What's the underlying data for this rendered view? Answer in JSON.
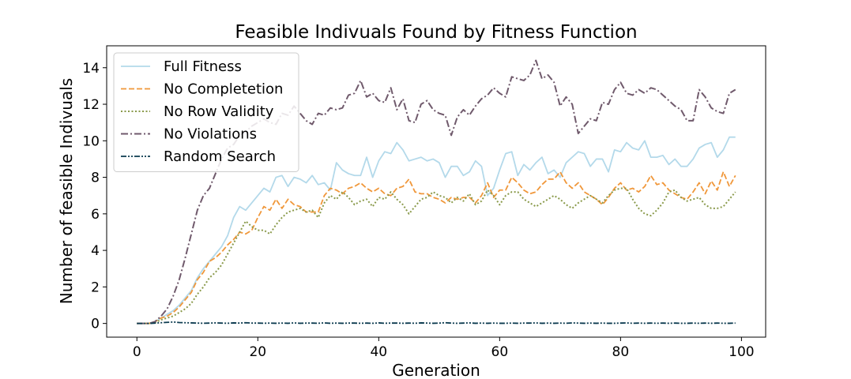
{
  "chart_data": {
    "type": "line",
    "title": "Feasible Indivuals Found by Fitness Function",
    "xlabel": "Generation",
    "ylabel": "Number of feasible Indivuals",
    "xlim": [
      -5,
      104
    ],
    "ylim": [
      -0.75,
      15.2
    ],
    "xticks": [
      0,
      20,
      40,
      60,
      80,
      100
    ],
    "yticks": [
      0,
      2,
      4,
      6,
      8,
      10,
      12,
      14
    ],
    "grid": false,
    "legend_position": "top-left",
    "series": [
      {
        "name": "Full Fitness",
        "color": "#b3d9ea",
        "dash": "solid",
        "x": [
          0,
          2,
          3,
          4,
          5,
          6,
          7,
          8,
          9,
          10,
          11,
          12,
          13,
          14,
          15,
          16,
          17,
          18,
          19,
          20,
          21,
          22,
          23,
          24,
          25,
          26,
          27,
          28,
          29,
          30,
          31,
          32,
          33,
          34,
          35,
          36,
          37,
          38,
          39,
          40,
          41,
          42,
          43,
          44,
          45,
          46,
          47,
          48,
          49,
          50,
          51,
          52,
          53,
          54,
          55,
          56,
          57,
          58,
          59,
          60,
          61,
          62,
          63,
          64,
          65,
          66,
          67,
          68,
          69,
          70,
          71,
          72,
          73,
          74,
          75,
          76,
          77,
          78,
          79,
          80,
          81,
          82,
          83,
          84,
          85,
          86,
          87,
          88,
          89,
          90,
          91,
          92,
          93,
          94,
          95,
          96,
          97,
          98,
          99
        ],
        "y": [
          0,
          0,
          0.1,
          0.3,
          0.5,
          0.7,
          1.0,
          1.4,
          1.8,
          2.5,
          3.0,
          3.4,
          3.8,
          4.2,
          4.8,
          5.8,
          6.4,
          6.2,
          6.6,
          7.0,
          7.4,
          7.2,
          8.0,
          8.1,
          7.5,
          8.0,
          7.9,
          7.7,
          8.1,
          7.6,
          7.7,
          7.3,
          8.8,
          8.4,
          8.2,
          8.1,
          8.1,
          9.1,
          8.0,
          8.9,
          9.4,
          9.3,
          9.9,
          9.5,
          8.9,
          9.0,
          9.1,
          8.9,
          9.0,
          8.8,
          8.0,
          8.6,
          8.6,
          8.1,
          8.3,
          8.9,
          8.6,
          7.0,
          7.4,
          8.4,
          9.3,
          9.4,
          8.1,
          8.7,
          8.4,
          8.8,
          9.1,
          8.2,
          8.4,
          8.0,
          8.8,
          9.1,
          9.4,
          9.3,
          8.6,
          9.0,
          9.0,
          8.3,
          9.5,
          9.4,
          9.9,
          9.6,
          9.5,
          10.0,
          9.1,
          9.1,
          9.2,
          8.7,
          9.0,
          8.6,
          8.6,
          9.0,
          9.6,
          9.8,
          9.9,
          9.1,
          9.5,
          10.2,
          10.2
        ]
      },
      {
        "name": "No Completetion",
        "color": "#f0973a",
        "dash": "dashed",
        "x": [
          0,
          2,
          3,
          4,
          5,
          6,
          7,
          8,
          9,
          10,
          11,
          12,
          13,
          14,
          15,
          16,
          17,
          18,
          19,
          20,
          21,
          22,
          23,
          24,
          25,
          26,
          27,
          28,
          29,
          30,
          31,
          32,
          33,
          34,
          35,
          36,
          37,
          38,
          39,
          40,
          41,
          42,
          43,
          44,
          45,
          46,
          47,
          48,
          49,
          50,
          51,
          52,
          53,
          54,
          55,
          56,
          57,
          58,
          59,
          60,
          61,
          62,
          63,
          64,
          65,
          66,
          67,
          68,
          69,
          70,
          71,
          72,
          73,
          74,
          75,
          76,
          77,
          78,
          79,
          80,
          81,
          82,
          83,
          84,
          85,
          86,
          87,
          88,
          89,
          90,
          91,
          92,
          93,
          94,
          95,
          96,
          97,
          98,
          99
        ],
        "y": [
          0,
          0,
          0.1,
          0.3,
          0.4,
          0.6,
          0.9,
          1.3,
          1.7,
          2.4,
          2.8,
          3.4,
          3.6,
          3.9,
          4.3,
          4.6,
          5.0,
          4.9,
          5.1,
          5.8,
          6.4,
          6.2,
          6.8,
          6.3,
          6.8,
          6.5,
          6.4,
          6.1,
          6.1,
          6.1,
          7.0,
          7.4,
          7.3,
          7.1,
          7.4,
          7.5,
          7.7,
          7.4,
          7.2,
          7.4,
          7.1,
          7.0,
          7.4,
          7.5,
          7.9,
          7.2,
          7.1,
          7.1,
          6.9,
          6.8,
          6.6,
          6.9,
          6.8,
          6.9,
          6.9,
          6.6,
          7.0,
          7.7,
          6.9,
          7.3,
          7.3,
          8.0,
          7.7,
          7.3,
          7.1,
          7.2,
          7.6,
          7.9,
          7.9,
          8.3,
          7.7,
          7.4,
          7.7,
          7.2,
          7.0,
          6.8,
          6.5,
          6.9,
          7.4,
          7.7,
          7.3,
          7.4,
          7.2,
          7.5,
          8.1,
          7.6,
          7.7,
          7.3,
          7.1,
          6.9,
          6.8,
          7.2,
          7.7,
          7.1,
          7.8,
          7.3,
          8.3,
          7.5,
          8.1
        ]
      },
      {
        "name": "No Row Validity",
        "color": "#8a9a4b",
        "dash": "dotted",
        "x": [
          0,
          2,
          3,
          4,
          5,
          6,
          7,
          8,
          9,
          10,
          11,
          12,
          13,
          14,
          15,
          16,
          17,
          18,
          19,
          20,
          21,
          22,
          23,
          24,
          25,
          26,
          27,
          28,
          29,
          30,
          31,
          32,
          33,
          34,
          35,
          36,
          37,
          38,
          39,
          40,
          41,
          42,
          43,
          44,
          45,
          46,
          47,
          48,
          49,
          50,
          51,
          52,
          53,
          54,
          55,
          56,
          57,
          58,
          59,
          60,
          61,
          62,
          63,
          64,
          65,
          66,
          67,
          68,
          69,
          70,
          71,
          72,
          73,
          74,
          75,
          76,
          77,
          78,
          79,
          80,
          81,
          82,
          83,
          84,
          85,
          86,
          87,
          88,
          89,
          90,
          91,
          92,
          93,
          94,
          95,
          96,
          97,
          98,
          99
        ],
        "y": [
          0,
          0,
          0.05,
          0.2,
          0.3,
          0.4,
          0.6,
          0.8,
          1.1,
          1.6,
          2.0,
          2.5,
          2.8,
          3.2,
          3.8,
          4.4,
          5.0,
          5.6,
          5.3,
          5.1,
          5.1,
          4.9,
          5.4,
          5.8,
          6.1,
          6.2,
          6.3,
          6.1,
          6.2,
          5.8,
          6.6,
          7.0,
          6.8,
          7.2,
          6.9,
          6.5,
          6.7,
          6.8,
          6.4,
          6.9,
          6.8,
          7.2,
          6.8,
          6.5,
          6.0,
          6.4,
          6.8,
          6.9,
          7.2,
          7.0,
          6.9,
          6.6,
          6.9,
          6.7,
          7.1,
          6.5,
          6.7,
          7.3,
          7.0,
          6.5,
          7.0,
          7.2,
          7.2,
          6.8,
          6.6,
          6.4,
          6.6,
          6.8,
          7.0,
          6.8,
          6.5,
          6.3,
          6.6,
          6.8,
          7.0,
          6.8,
          6.6,
          7.0,
          7.3,
          7.4,
          7.4,
          6.8,
          6.3,
          6.0,
          5.9,
          6.2,
          6.6,
          7.2,
          7.3,
          6.9,
          6.7,
          6.8,
          6.9,
          6.5,
          6.3,
          6.3,
          6.4,
          6.8,
          7.2
        ]
      },
      {
        "name": "No Violations",
        "color": "#705a6c",
        "dash": "dashdot",
        "x": [
          0,
          2,
          3,
          4,
          5,
          6,
          7,
          8,
          9,
          10,
          11,
          12,
          13,
          14,
          15,
          16,
          17,
          18,
          19,
          20,
          21,
          22,
          23,
          24,
          25,
          26,
          27,
          28,
          29,
          30,
          31,
          32,
          33,
          34,
          35,
          36,
          37,
          38,
          39,
          40,
          41,
          42,
          43,
          44,
          45,
          46,
          47,
          48,
          49,
          50,
          51,
          52,
          53,
          54,
          55,
          56,
          57,
          58,
          59,
          60,
          61,
          62,
          63,
          64,
          65,
          66,
          67,
          68,
          69,
          70,
          71,
          72,
          73,
          74,
          75,
          76,
          77,
          78,
          79,
          80,
          81,
          82,
          83,
          84,
          85,
          86,
          87,
          88,
          89,
          90,
          91,
          92,
          93,
          94,
          95,
          96,
          97,
          98,
          99
        ],
        "y": [
          0,
          0,
          0.1,
          0.4,
          0.8,
          1.5,
          2.4,
          3.6,
          4.9,
          6.2,
          7.0,
          7.4,
          8.2,
          9.0,
          9.6,
          9.8,
          10.3,
          10.5,
          10.8,
          11.0,
          11.2,
          11.0,
          10.9,
          11.5,
          11.4,
          11.9,
          11.5,
          11.1,
          10.9,
          11.5,
          11.4,
          11.8,
          11.7,
          11.8,
          12.5,
          12.6,
          13.3,
          12.4,
          12.6,
          12.2,
          12.1,
          12.9,
          11.7,
          12.3,
          11.1,
          11.0,
          12.0,
          12.2,
          11.7,
          11.5,
          11.4,
          10.3,
          11.3,
          11.7,
          11.4,
          11.9,
          12.3,
          12.5,
          12.9,
          12.6,
          12.4,
          13.5,
          13.4,
          13.3,
          13.6,
          14.4,
          13.4,
          13.6,
          13.2,
          11.9,
          12.4,
          12.0,
          10.4,
          10.8,
          11.2,
          11.1,
          12.1,
          12.0,
          12.8,
          13.2,
          12.6,
          12.5,
          12.8,
          12.6,
          12.9,
          12.8,
          12.5,
          12.2,
          11.9,
          11.7,
          11.1,
          11.1,
          12.8,
          12.4,
          11.8,
          11.6,
          11.5,
          12.6,
          12.8
        ]
      },
      {
        "name": "Random Search",
        "color": "#0b3a4f",
        "dash": "dashdotdot",
        "x": [
          0,
          2,
          3,
          4,
          5,
          6,
          7,
          8,
          9,
          10,
          11,
          12,
          13,
          14,
          15,
          16,
          17,
          18,
          19,
          20,
          21,
          22,
          23,
          24,
          25,
          26,
          27,
          28,
          29,
          30,
          31,
          32,
          33,
          34,
          35,
          36,
          37,
          38,
          39,
          40,
          41,
          42,
          43,
          44,
          45,
          46,
          47,
          48,
          49,
          50,
          51,
          52,
          53,
          54,
          55,
          56,
          57,
          58,
          59,
          60,
          61,
          62,
          63,
          64,
          65,
          66,
          67,
          68,
          69,
          70,
          71,
          72,
          73,
          74,
          75,
          76,
          77,
          78,
          79,
          80,
          81,
          82,
          83,
          84,
          85,
          86,
          87,
          88,
          89,
          90,
          91,
          92,
          93,
          94,
          95,
          96,
          97,
          98,
          99
        ],
        "y": [
          0,
          0,
          0.02,
          0.04,
          0.06,
          0.08,
          0.05,
          0.04,
          0.03,
          0.02,
          0.01,
          0.02,
          0.03,
          0.02,
          0.01,
          0.03,
          0.02,
          0.04,
          0.02,
          0.02,
          0.01,
          0.02,
          0.01,
          0.02,
          0.01,
          0.03,
          0.01,
          0.02,
          0.02,
          0.01,
          0.03,
          0.01,
          0.02,
          0.01,
          0.02,
          0.02,
          0.01,
          0.02,
          0.01,
          0.03,
          0.01,
          0.02,
          0.02,
          0.01,
          0.02,
          0.01,
          0.03,
          0.02,
          0.01,
          0.02,
          0.04,
          0.02,
          0.01,
          0.02,
          0.03,
          0.01,
          0.02,
          0.01,
          0.02,
          0.01,
          0.01,
          0.02,
          0.01,
          0.02,
          0.02,
          0.03,
          0.01,
          0.02,
          0.01,
          0.02,
          0.01,
          0.03,
          0.02,
          0.01,
          0.02,
          0.01,
          0.02,
          0.01,
          0.01,
          0.02,
          0.03,
          0.01,
          0.02,
          0.01,
          0.02,
          0.01,
          0.02,
          0.01,
          0.02,
          0.01,
          0.01,
          0.02,
          0.01,
          0.02,
          0.01,
          0.02,
          0.01,
          0.01,
          0.02
        ]
      }
    ]
  }
}
